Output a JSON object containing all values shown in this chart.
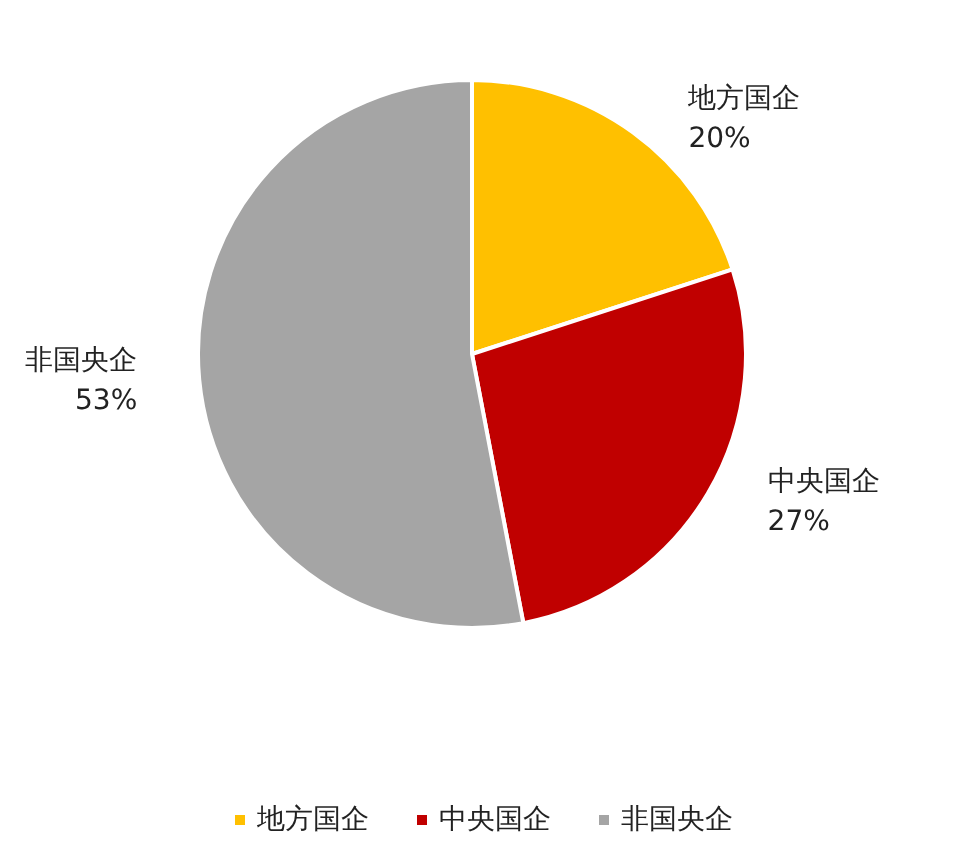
{
  "chart_data": {
    "type": "pie",
    "categories": [
      "地方国企",
      "中央国企",
      "非国央企"
    ],
    "values": [
      20,
      27,
      53
    ],
    "value_labels": [
      "20%",
      "27%",
      "53%"
    ],
    "colors": [
      "#ffc000",
      "#c00000",
      "#a5a5a5"
    ],
    "legend": "bottom"
  }
}
